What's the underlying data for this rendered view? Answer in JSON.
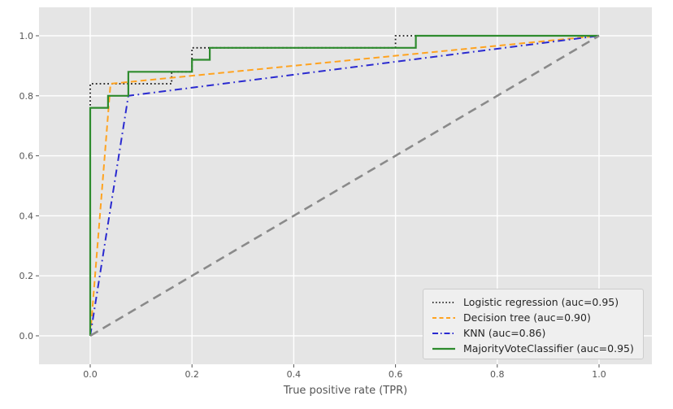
{
  "figure": {
    "background_color": "#ffffff",
    "plot_background_color": "#e5e5e5",
    "grid_color": "#ffffff",
    "tick_color": "#555555",
    "legend": {
      "background_color": "#efefef",
      "border_color": "#cccccc",
      "position": "lower right"
    }
  },
  "chart_data": {
    "type": "line",
    "title": "",
    "xlabel": "True positive rate (TPR)",
    "ylabel": "",
    "xlim": [
      -0.1,
      1.1
    ],
    "ylim": [
      -0.1,
      1.1
    ],
    "x_ticks": [
      0.0,
      0.2,
      0.4,
      0.6,
      0.8,
      1.0
    ],
    "y_ticks": [
      0.0,
      0.2,
      0.4,
      0.6,
      0.8,
      1.0
    ],
    "x_tick_labels": [
      "0.0",
      "0.2",
      "0.4",
      "0.6",
      "0.8",
      "1.0"
    ],
    "y_tick_labels": [
      "0.0",
      "0.2",
      "0.4",
      "0.6",
      "0.8",
      "1.0"
    ],
    "grid": true,
    "legend_position": "lower right",
    "series": [
      {
        "name": "Logistic regression (auc=0.95)",
        "auc": 0.95,
        "color": "#1a1a1a",
        "style": "dotted",
        "width": 1.8,
        "in_legend": true,
        "points": [
          [
            0,
            0
          ],
          [
            0,
            0.84
          ],
          [
            0.16,
            0.84
          ],
          [
            0.16,
            0.88
          ],
          [
            0.2,
            0.88
          ],
          [
            0.2,
            0.96
          ],
          [
            0.6,
            0.96
          ],
          [
            0.6,
            1.0
          ],
          [
            1.0,
            1.0
          ]
        ]
      },
      {
        "name": "Decision tree (auc=0.90)",
        "auc": 0.9,
        "color": "#ffa320",
        "style": "dashed",
        "width": 2,
        "in_legend": true,
        "points": [
          [
            0,
            0
          ],
          [
            0.04,
            0.84
          ],
          [
            1.0,
            1.0
          ]
        ]
      },
      {
        "name": "KNN (auc=0.86)",
        "auc": 0.86,
        "color": "#2a2ad0",
        "style": "dashdot",
        "width": 2,
        "in_legend": true,
        "points": [
          [
            0,
            0
          ],
          [
            0.075,
            0.8
          ],
          [
            1.0,
            1.0
          ]
        ]
      },
      {
        "name": "MajorityVoteClassifier (auc=0.95)",
        "auc": 0.95,
        "color": "#2e8b2e",
        "style": "solid",
        "width": 2.2,
        "in_legend": true,
        "points": [
          [
            0,
            0
          ],
          [
            0,
            0.76
          ],
          [
            0.035,
            0.76
          ],
          [
            0.035,
            0.8
          ],
          [
            0.075,
            0.8
          ],
          [
            0.075,
            0.88
          ],
          [
            0.2,
            0.88
          ],
          [
            0.2,
            0.92
          ],
          [
            0.235,
            0.92
          ],
          [
            0.235,
            0.96
          ],
          [
            0.64,
            0.96
          ],
          [
            0.64,
            1.0
          ],
          [
            1.0,
            1.0
          ]
        ]
      },
      {
        "name": "chance-diagonal",
        "color": "#8a8a8a",
        "style": "longdash",
        "width": 2.6,
        "in_legend": false,
        "points": [
          [
            0,
            0
          ],
          [
            1.0,
            1.0
          ]
        ]
      }
    ]
  }
}
